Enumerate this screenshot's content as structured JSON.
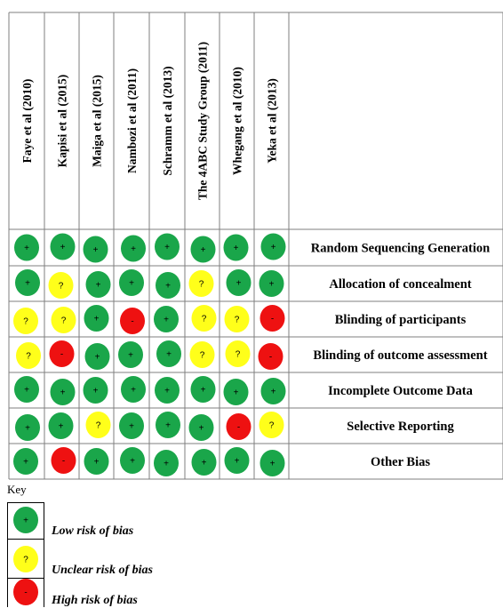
{
  "studies": [
    "Faye et al (2010)",
    "Kapisi et al (2015)",
    "Maiga et al (2015)",
    "Nambozi et al (2011)",
    "Schramm et al (2013)",
    "The 4ABC Study Group (2011)",
    "Whegang et al (2010)",
    "Yeka et al (2013)"
  ],
  "domains": [
    "Random Sequencing Generation",
    "Allocation of concealment",
    "Blinding of participants",
    "Blinding of outcome assessment",
    "Incomplete Outcome Data",
    "Selective Reporting",
    "Other Bias"
  ],
  "ratings": [
    [
      "low",
      "low",
      "low",
      "low",
      "low",
      "low",
      "low",
      "low"
    ],
    [
      "low",
      "unclear",
      "low",
      "low",
      "low",
      "unclear",
      "low",
      "low"
    ],
    [
      "unclear",
      "unclear",
      "low",
      "high",
      "low",
      "unclear",
      "unclear",
      "high"
    ],
    [
      "unclear",
      "high",
      "low",
      "low",
      "low",
      "unclear",
      "unclear",
      "high"
    ],
    [
      "low",
      "low",
      "low",
      "low",
      "low",
      "low",
      "low",
      "low"
    ],
    [
      "low",
      "low",
      "unclear",
      "low",
      "low",
      "low",
      "high",
      "unclear"
    ],
    [
      "low",
      "high",
      "low",
      "low",
      "low",
      "low",
      "low",
      "low"
    ]
  ],
  "symbols": {
    "low": "+",
    "unclear": "?",
    "high": "-"
  },
  "colors": {
    "low": "#1aa64a",
    "unclear": "#ffff1a",
    "high": "#ee1111",
    "grid": "#7f7f7f"
  },
  "key": {
    "title": "Key",
    "items": [
      {
        "level": "low",
        "label": "Low risk of bias"
      },
      {
        "level": "unclear",
        "label": "Unclear risk of bias"
      },
      {
        "level": "high",
        "label": "High risk of bias"
      }
    ]
  }
}
